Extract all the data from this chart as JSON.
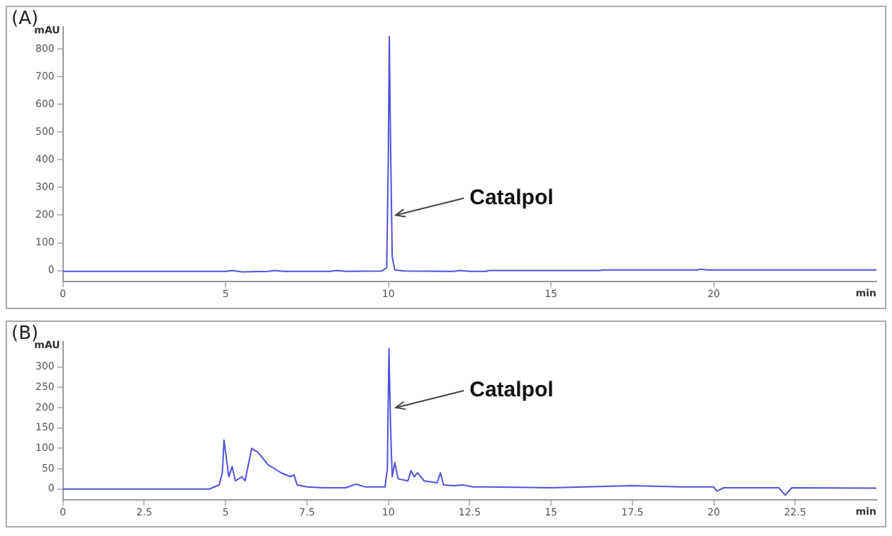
{
  "chart_data": [
    {
      "type": "line",
      "title": "(A)",
      "xlabel": "min",
      "ylabel": "mAU",
      "xlim": [
        0,
        25
      ],
      "ylim": [
        -40,
        880
      ],
      "xticks": [
        0,
        5,
        10,
        15,
        20
      ],
      "yticks": [
        0,
        100,
        200,
        300,
        400,
        500,
        600,
        700,
        800
      ],
      "marker": "none",
      "annotations": [
        {
          "text": "Catalpol",
          "x": 10.1,
          "y": 200
        }
      ],
      "series": [
        {
          "color": "#5050e0",
          "x": [
            0,
            5,
            5.2,
            5.5,
            6.3,
            6.5,
            6.8,
            8.2,
            8.4,
            8.7,
            9.8,
            9.95,
            10,
            10.03,
            10.07,
            10.12,
            10.2,
            10.5,
            12,
            12.2,
            12.5,
            13,
            13.1,
            16.5,
            16.6,
            19.5,
            19.6,
            19.8,
            25
          ],
          "values": [
            -3,
            -3,
            0,
            -5,
            -3,
            0,
            -3,
            -3,
            0,
            -3,
            -2,
            10,
            400,
            845,
            450,
            50,
            2,
            -2,
            -3,
            0,
            -3,
            -3,
            0,
            0,
            2,
            2,
            5,
            2,
            2
          ]
        }
      ]
    },
    {
      "type": "line",
      "title": "(B)",
      "xlabel": "min",
      "ylabel": "mAU",
      "xlim": [
        0,
        25
      ],
      "ylim": [
        -27,
        362
      ],
      "xticks": [
        0,
        2.5,
        5,
        7.5,
        10,
        12.5,
        15,
        17.5,
        20,
        22.5
      ],
      "yticks": [
        0,
        50,
        100,
        150,
        200,
        250,
        300
      ],
      "marker": "none",
      "annotations": [
        {
          "text": "Catalpol",
          "x": 10.1,
          "y": 200
        }
      ],
      "series": [
        {
          "color": "#5050e0",
          "x": [
            0,
            4.5,
            4.8,
            4.9,
            4.95,
            5.05,
            5.1,
            5.2,
            5.3,
            5.5,
            5.6,
            5.8,
            6,
            6.3,
            6.7,
            7,
            7.1,
            7.2,
            7.5,
            8,
            8.7,
            9,
            9.3,
            9.9,
            9.97,
            10.02,
            10.07,
            10.12,
            10.2,
            10.3,
            10.6,
            10.7,
            10.8,
            10.9,
            11.1,
            11.5,
            11.6,
            11.7,
            12,
            12.3,
            12.6,
            13,
            15,
            17.5,
            19,
            20,
            20.1,
            20.3,
            22,
            22.2,
            22.4,
            25
          ],
          "values": [
            0,
            0,
            10,
            40,
            120,
            60,
            30,
            55,
            20,
            30,
            20,
            100,
            90,
            60,
            40,
            30,
            35,
            10,
            5,
            3,
            3,
            12,
            5,
            5,
            50,
            345,
            150,
            30,
            65,
            25,
            20,
            45,
            30,
            40,
            20,
            15,
            40,
            10,
            8,
            10,
            5,
            5,
            3,
            8,
            5,
            5,
            -5,
            3,
            3,
            -15,
            3,
            2
          ]
        }
      ]
    }
  ]
}
